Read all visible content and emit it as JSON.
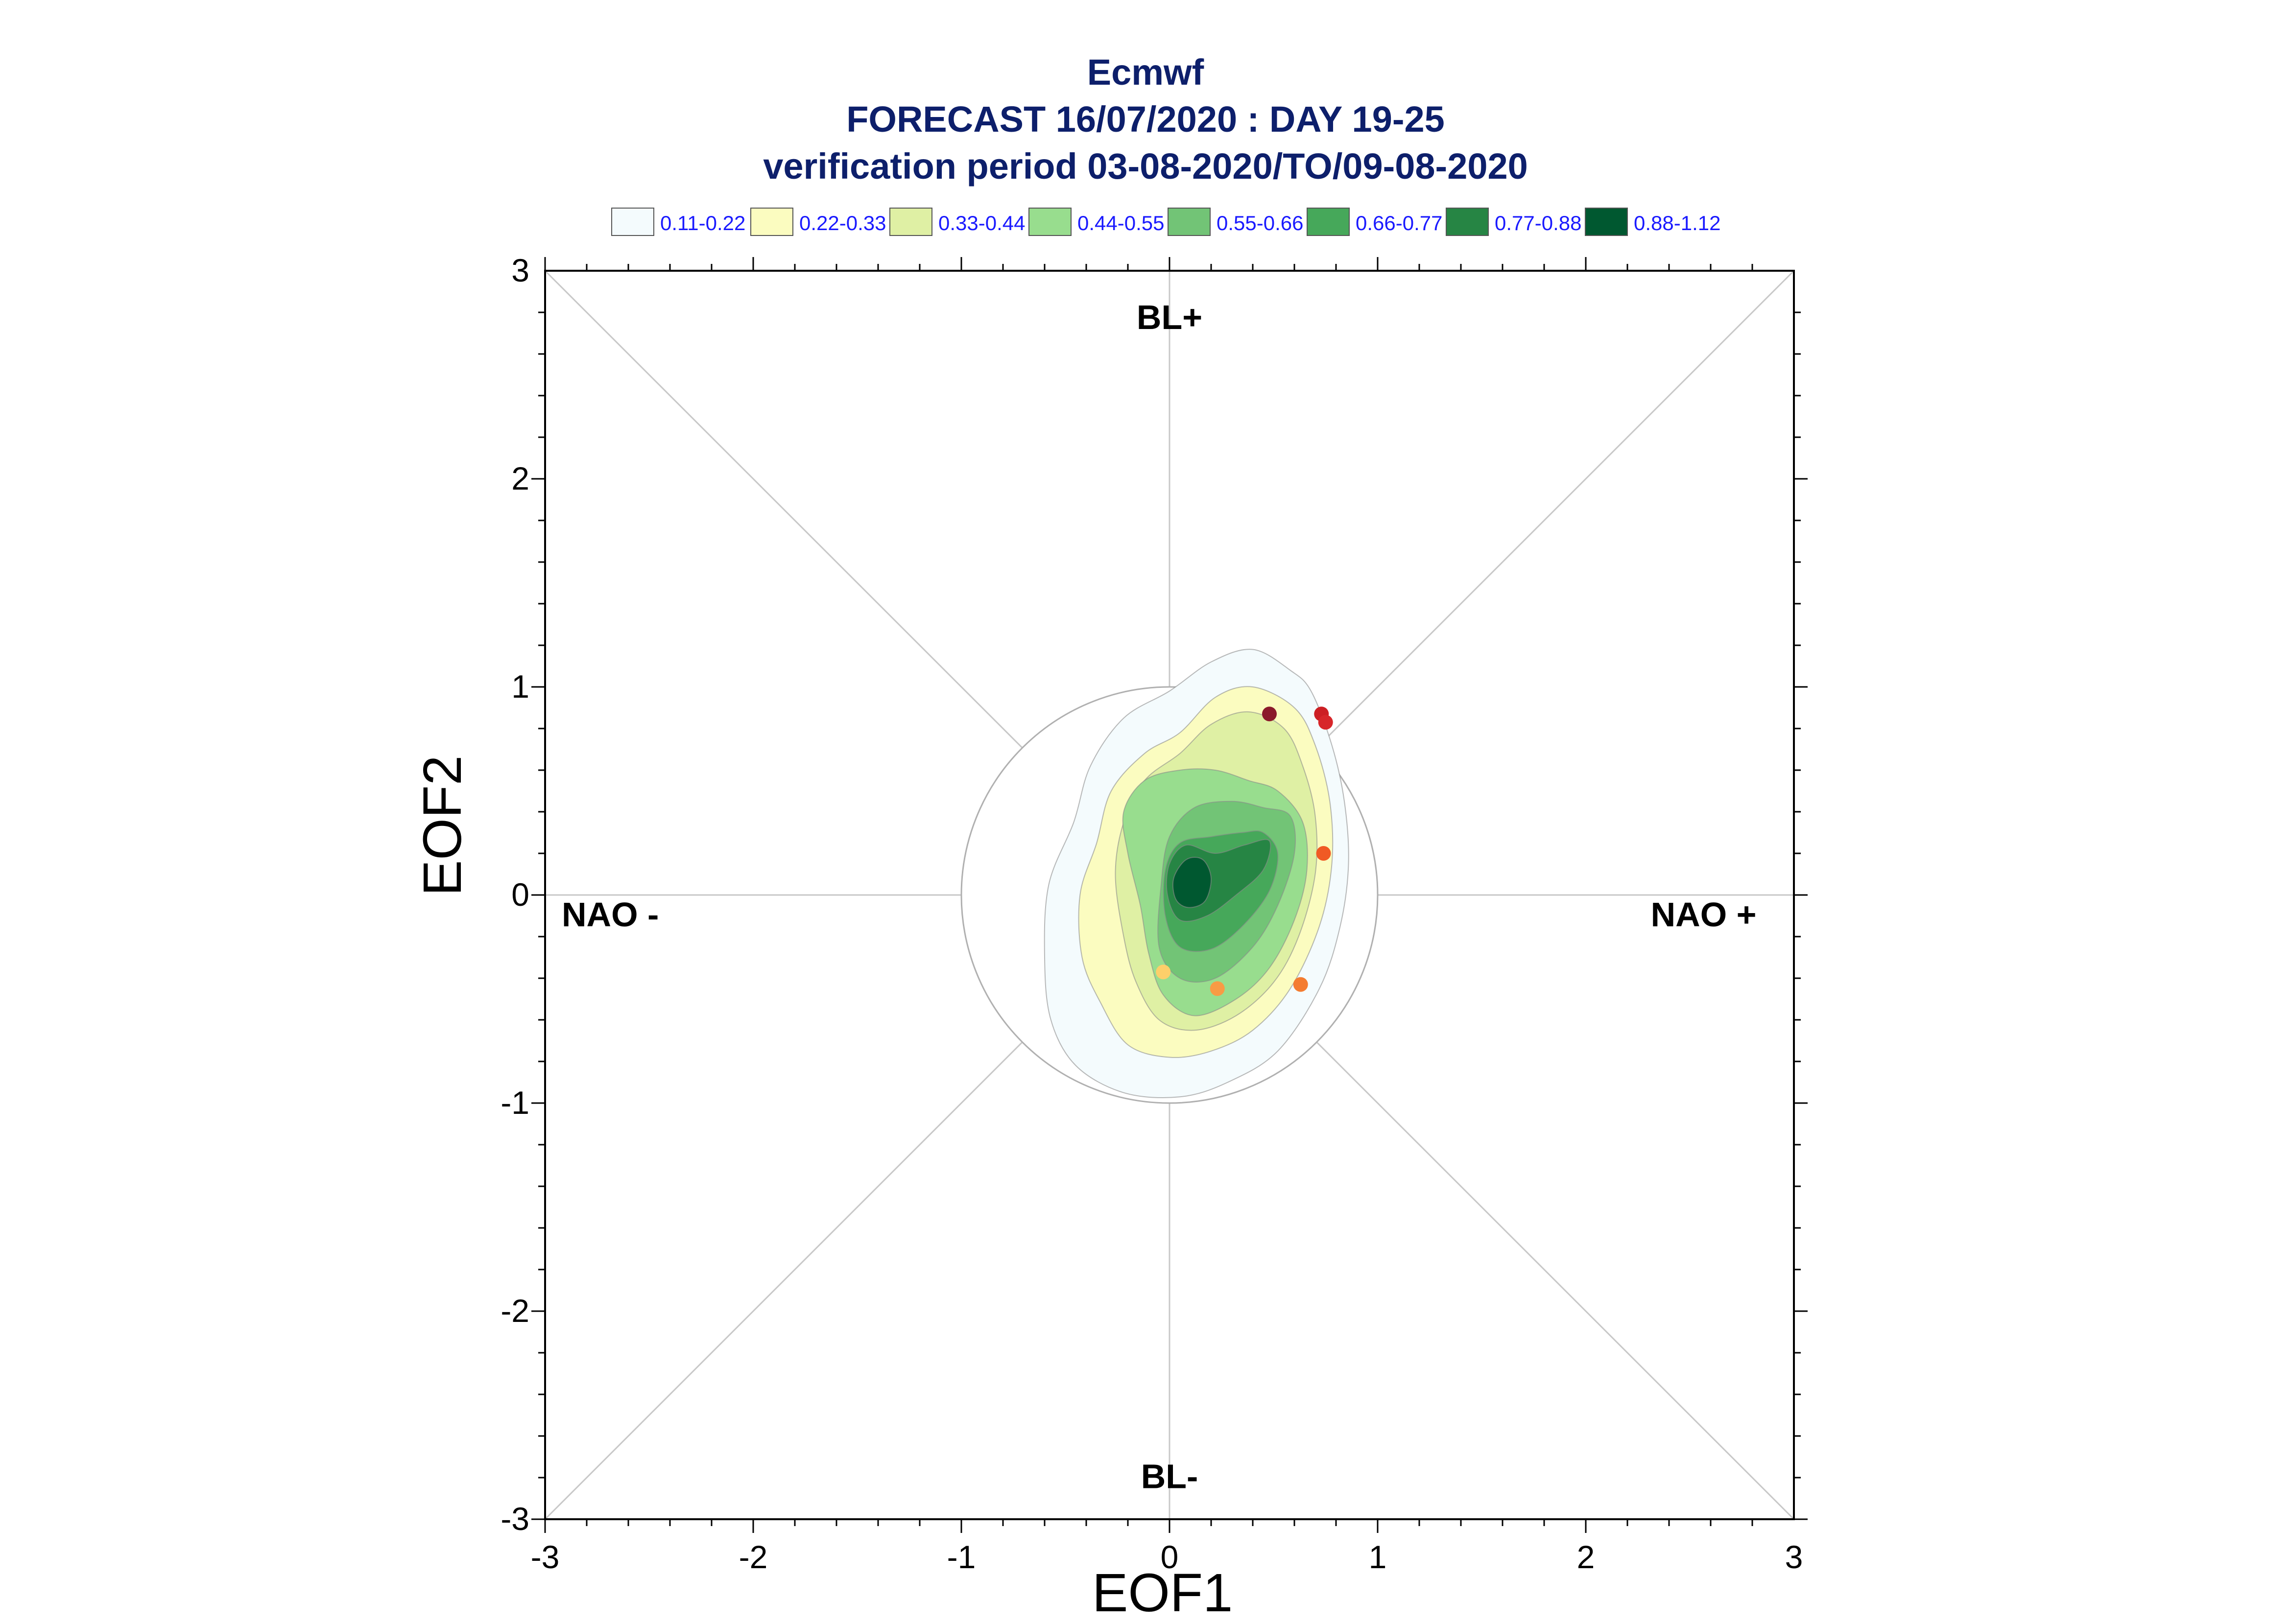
{
  "title": {
    "line1": "Ecmwf",
    "line2": "FORECAST 16/07/2020 : DAY 19-25",
    "line3": "verification period 03-08-2020/TO/09-08-2020"
  },
  "legend": [
    {
      "label": "0.11-0.22",
      "color": "#f4fbfd"
    },
    {
      "label": "0.22-0.33",
      "color": "#fbfcc0"
    },
    {
      "label": "0.33-0.44",
      "color": "#dff0a4"
    },
    {
      "label": "0.44-0.55",
      "color": "#98dd8e"
    },
    {
      "label": "0.55-0.66",
      "color": "#72c476"
    },
    {
      "label": "0.66-0.77",
      "color": "#46a85a"
    },
    {
      "label": "0.77-0.88",
      "color": "#268544"
    },
    {
      "label": "0.88-1.12",
      "color": "#005830"
    }
  ],
  "chart_data": {
    "type": "scatter",
    "title": "Ecmwf FORECAST 16/07/2020 : DAY 19-25 verification period 03-08-2020/TO/09-08-2020",
    "xlabel": "EOF1",
    "ylabel": "EOF2",
    "xlim": [
      -3,
      3
    ],
    "ylim": [
      -3,
      3
    ],
    "xticks": [
      "-3",
      "-2",
      "-1",
      "0",
      "1",
      "2",
      "3"
    ],
    "yticks": [
      "-3",
      "-2",
      "-1",
      "0",
      "1",
      "2",
      "3"
    ],
    "quadrant_labels": {
      "top": "BL+",
      "bottom": "BL-",
      "left": "NAO -",
      "right": "NAO +"
    },
    "reference_circle_radius": 1.0,
    "grid": false,
    "density_contours": [
      {
        "level": "0.11-0.22",
        "color": "#f4fbfd",
        "points": [
          [
            0.4,
            1.18
          ],
          [
            0.58,
            1.08
          ],
          [
            0.68,
            0.98
          ],
          [
            0.78,
            0.72
          ],
          [
            0.84,
            0.45
          ],
          [
            0.86,
            0.15
          ],
          [
            0.82,
            -0.15
          ],
          [
            0.72,
            -0.45
          ],
          [
            0.52,
            -0.75
          ],
          [
            0.28,
            -0.9
          ],
          [
            0.05,
            -0.97
          ],
          [
            -0.22,
            -0.95
          ],
          [
            -0.45,
            -0.82
          ],
          [
            -0.57,
            -0.6
          ],
          [
            -0.6,
            -0.3
          ],
          [
            -0.58,
            0.05
          ],
          [
            -0.46,
            0.35
          ],
          [
            -0.38,
            0.62
          ],
          [
            -0.22,
            0.85
          ],
          [
            0.0,
            0.98
          ],
          [
            0.2,
            1.12
          ]
        ]
      },
      {
        "level": "0.22-0.33",
        "color": "#fbfcc0",
        "points": [
          [
            0.4,
            1.0
          ],
          [
            0.6,
            0.9
          ],
          [
            0.7,
            0.72
          ],
          [
            0.77,
            0.45
          ],
          [
            0.78,
            0.15
          ],
          [
            0.72,
            -0.15
          ],
          [
            0.58,
            -0.45
          ],
          [
            0.4,
            -0.65
          ],
          [
            0.2,
            -0.75
          ],
          [
            0.0,
            -0.78
          ],
          [
            -0.2,
            -0.72
          ],
          [
            -0.33,
            -0.52
          ],
          [
            -0.42,
            -0.3
          ],
          [
            -0.43,
            0.0
          ],
          [
            -0.35,
            0.25
          ],
          [
            -0.28,
            0.5
          ],
          [
            -0.12,
            0.68
          ],
          [
            0.05,
            0.78
          ],
          [
            0.22,
            0.95
          ]
        ]
      },
      {
        "level": "0.33-0.44",
        "color": "#dff0a4",
        "points": [
          [
            0.38,
            0.88
          ],
          [
            0.55,
            0.8
          ],
          [
            0.64,
            0.62
          ],
          [
            0.7,
            0.38
          ],
          [
            0.7,
            0.1
          ],
          [
            0.62,
            -0.2
          ],
          [
            0.5,
            -0.42
          ],
          [
            0.32,
            -0.58
          ],
          [
            0.12,
            -0.65
          ],
          [
            -0.05,
            -0.6
          ],
          [
            -0.16,
            -0.42
          ],
          [
            -0.22,
            -0.2
          ],
          [
            -0.26,
            0.1
          ],
          [
            -0.22,
            0.35
          ],
          [
            -0.12,
            0.55
          ],
          [
            0.05,
            0.68
          ],
          [
            0.2,
            0.82
          ]
        ]
      },
      {
        "level": "0.44-0.55",
        "color": "#98dd8e",
        "points": [
          [
            0.22,
            0.6
          ],
          [
            0.38,
            0.55
          ],
          [
            0.52,
            0.5
          ],
          [
            0.64,
            0.35
          ],
          [
            0.66,
            0.12
          ],
          [
            0.6,
            -0.12
          ],
          [
            0.48,
            -0.35
          ],
          [
            0.32,
            -0.5
          ],
          [
            0.12,
            -0.58
          ],
          [
            -0.03,
            -0.48
          ],
          [
            -0.1,
            -0.28
          ],
          [
            -0.14,
            -0.05
          ],
          [
            -0.2,
            0.2
          ],
          [
            -0.22,
            0.4
          ],
          [
            -0.12,
            0.55
          ],
          [
            0.05,
            0.6
          ]
        ]
      },
      {
        "level": "0.55-0.66",
        "color": "#72c476",
        "points": [
          [
            0.45,
            0.42
          ],
          [
            0.58,
            0.38
          ],
          [
            0.6,
            0.2
          ],
          [
            0.52,
            -0.05
          ],
          [
            0.4,
            -0.25
          ],
          [
            0.22,
            -0.4
          ],
          [
            0.05,
            -0.4
          ],
          [
            -0.05,
            -0.25
          ],
          [
            -0.04,
            0.05
          ],
          [
            0.0,
            0.28
          ],
          [
            0.12,
            0.42
          ],
          [
            0.3,
            0.45
          ]
        ]
      },
      {
        "level": "0.66-0.77",
        "color": "#46a85a",
        "points": [
          [
            0.45,
            0.3
          ],
          [
            0.52,
            0.2
          ],
          [
            0.48,
            0.02
          ],
          [
            0.35,
            -0.15
          ],
          [
            0.2,
            -0.26
          ],
          [
            0.05,
            -0.25
          ],
          [
            -0.02,
            -0.1
          ],
          [
            -0.02,
            0.12
          ],
          [
            0.05,
            0.25
          ],
          [
            0.2,
            0.28
          ],
          [
            0.35,
            0.3
          ]
        ]
      },
      {
        "level": "0.77-0.88",
        "color": "#268544",
        "points": [
          [
            0.48,
            0.26
          ],
          [
            0.45,
            0.12
          ],
          [
            0.32,
            0.0
          ],
          [
            0.18,
            -0.1
          ],
          [
            0.05,
            -0.12
          ],
          [
            -0.01,
            0.0
          ],
          [
            0.0,
            0.15
          ],
          [
            0.08,
            0.24
          ],
          [
            0.22,
            0.2
          ],
          [
            0.36,
            0.24
          ]
        ]
      },
      {
        "level": "0.88-1.12",
        "color": "#005830",
        "points": [
          [
            0.16,
            0.17
          ],
          [
            0.2,
            0.08
          ],
          [
            0.17,
            -0.03
          ],
          [
            0.09,
            -0.06
          ],
          [
            0.03,
            -0.02
          ],
          [
            0.02,
            0.08
          ],
          [
            0.08,
            0.17
          ]
        ]
      }
    ],
    "points": [
      {
        "x": 0.48,
        "y": 0.87,
        "color": "#8b1a2b"
      },
      {
        "x": 0.73,
        "y": 0.87,
        "color": "#cc1f24"
      },
      {
        "x": 0.75,
        "y": 0.83,
        "color": "#d7262a"
      },
      {
        "x": 0.74,
        "y": 0.2,
        "color": "#f05a24"
      },
      {
        "x": 0.63,
        "y": -0.43,
        "color": "#f47c30"
      },
      {
        "x": 0.23,
        "y": -0.45,
        "color": "#f89b45"
      },
      {
        "x": -0.03,
        "y": -0.37,
        "color": "#fdcf6a"
      }
    ]
  }
}
